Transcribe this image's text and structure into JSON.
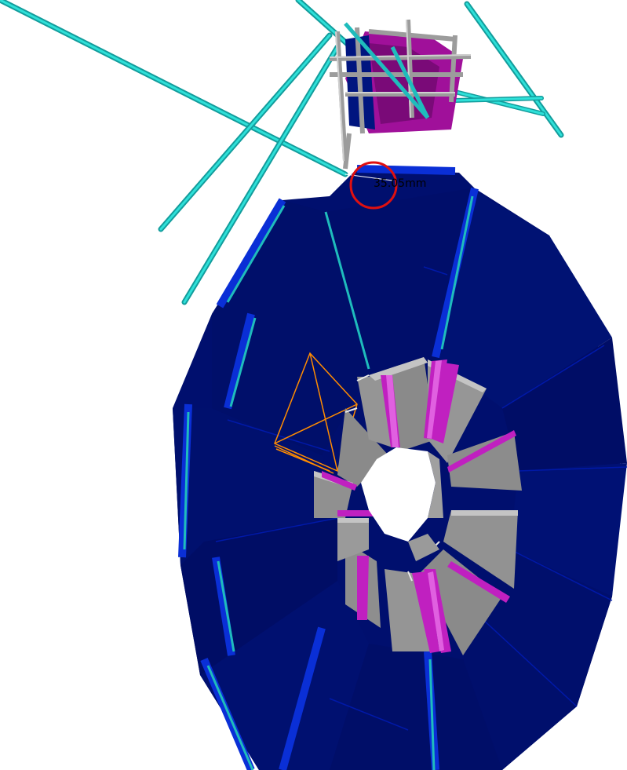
{
  "viewer": {
    "background": "#ffffff",
    "measurement": {
      "label": "35.05mm",
      "marker_color": "#e01010"
    }
  },
  "colors": {
    "panel_dark": "#000f6e",
    "panel_mid": "#00157f",
    "panel_edge": "#0a2fd6",
    "panel_bright": "#1a3cff",
    "support_bar": "#1fbcbc",
    "support_bar_light": "#2ee0d8",
    "inner_module": "#8a8a8a",
    "inner_module_light": "#b8b8b8",
    "inner_accent": "#c020c0",
    "inner_accent_light": "#e060e0",
    "frame_gray": "#a8a8a8",
    "frame_gray_dark": "#707070",
    "magenta_block": "#a0109a",
    "highlight_outline": "#ff8c00"
  },
  "scene": {
    "objects": [
      {
        "name": "outer-detector-ring",
        "type": "ring",
        "segments": 14
      },
      {
        "name": "inner-module-ring",
        "type": "ring",
        "segments": 16
      },
      {
        "name": "upper-support-frame",
        "type": "frame"
      },
      {
        "name": "cyan-support-rods",
        "type": "rods"
      },
      {
        "name": "selected-panel-outline",
        "type": "outline"
      }
    ]
  }
}
